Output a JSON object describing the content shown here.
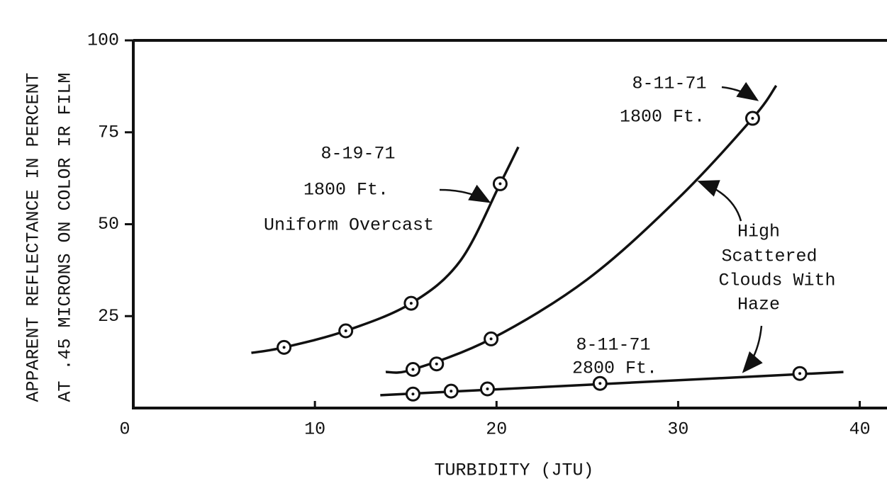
{
  "chart_data": {
    "type": "scatter",
    "xlabel": "TURBIDITY (JTU)",
    "ylabel": [
      "APPARENT REFLECTANCE IN PERCENT",
      "AT .45 MICRONS ON COLOR IR FILM"
    ],
    "xlim": [
      0,
      41.5
    ],
    "ylim": [
      0,
      100
    ],
    "xticks": [
      0,
      10,
      20,
      30,
      40
    ],
    "yticks": [
      25,
      50,
      75,
      100
    ],
    "grid": false,
    "color": "#111111",
    "series": [
      {
        "x": [
          8.3,
          11.7,
          15.3,
          20.2
        ],
        "values": [
          16.5,
          21,
          28.5,
          61
        ],
        "curve": {
          "x": [
            6.5,
            8.3,
            11.7,
            15.3,
            18,
            20.2,
            21.2
          ],
          "values": [
            15,
            16.5,
            21,
            28.5,
            40,
            61,
            71
          ]
        }
      },
      {
        "x": [
          15.4,
          16.7,
          19.7,
          34.1
        ],
        "values": [
          10.5,
          12,
          18.8,
          78.8
        ],
        "curve": {
          "x": [
            13.9,
            15.4,
            19.7,
            25,
            30,
            34.1,
            35.4
          ],
          "values": [
            9.8,
            10.5,
            18.8,
            35,
            57,
            78.8,
            87.7
          ]
        }
      },
      {
        "x": [
          15.4,
          17.5,
          19.5,
          25.7,
          36.7
        ],
        "values": [
          3.8,
          4.6,
          5.2,
          6.7,
          9.4
        ],
        "curve": {
          "x": [
            13.6,
            39.1
          ],
          "values": [
            3.5,
            9.8
          ]
        }
      }
    ],
    "annotations": [
      "8-11-71",
      "1800 Ft.",
      "8-19-71",
      "1800 Ft.",
      "Uniform Overcast",
      "High",
      "Scattered",
      "Clouds With",
      "Haze",
      "8-11-71",
      "2800 Ft."
    ]
  }
}
